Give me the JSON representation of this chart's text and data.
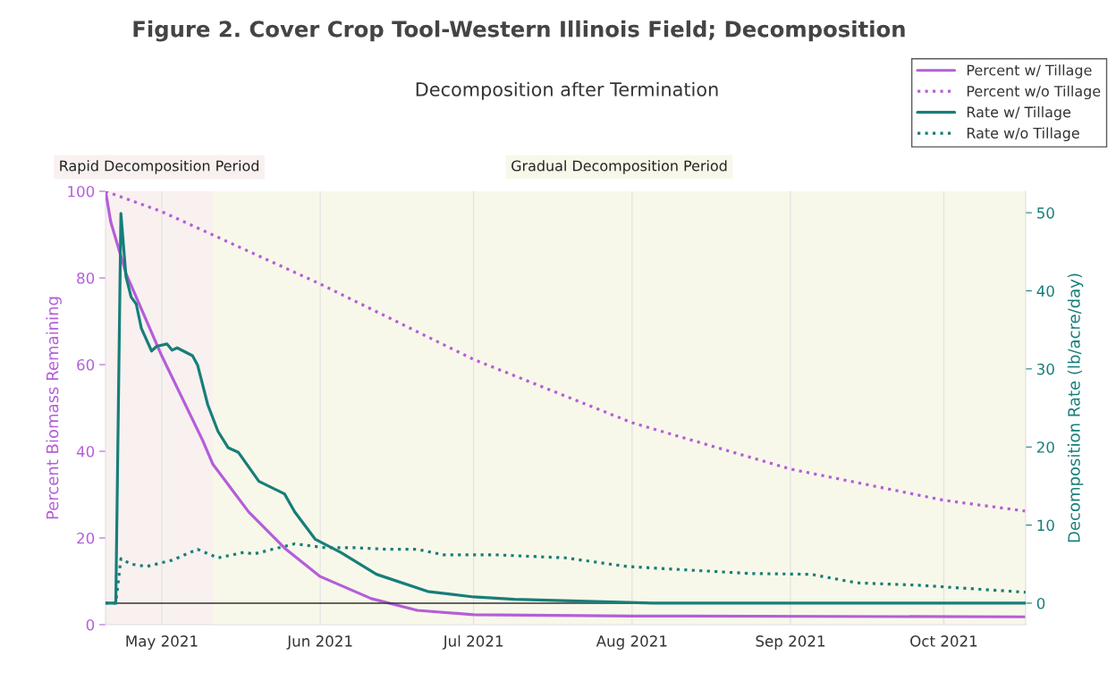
{
  "chart_data": {
    "type": "line",
    "title": "Figure 2. Cover Crop Tool-Western Illinois Field; Decomposition",
    "subtitle": "Decomposition after Termination",
    "ylabel": "Percent Biomass Remaining",
    "y2label": "Decomposition Rate (lb/acre/day)",
    "xlim": [
      "2021-04-20",
      "2021-10-17"
    ],
    "xticks": [
      {
        "value": "2021-05-01",
        "label": "May 2021"
      },
      {
        "value": "2021-06-01",
        "label": "Jun 2021"
      },
      {
        "value": "2021-07-01",
        "label": "Jul 2021"
      },
      {
        "value": "2021-08-01",
        "label": "Aug 2021"
      },
      {
        "value": "2021-09-01",
        "label": "Sep 2021"
      },
      {
        "value": "2021-10-01",
        "label": "Oct 2021"
      }
    ],
    "ylim": [
      0,
      100
    ],
    "yticks": [
      0,
      20,
      40,
      60,
      80,
      100
    ],
    "y2lim": [
      -2.75,
      52.75
    ],
    "y2ticks": [
      0,
      10,
      20,
      30,
      40,
      50
    ],
    "grid": "x",
    "legend": "top right",
    "bands": [
      {
        "axis": "x",
        "from": "2021-04-20",
        "to": "2021-05-11",
        "label": "Rapid Decomposition Period",
        "color": "#f8f1ef"
      },
      {
        "axis": "x",
        "from": "2021-05-11",
        "to": "2021-10-17",
        "label": "Gradual Decomposition Period",
        "color": "#f8f8ea"
      }
    ],
    "ref_lines": [
      {
        "axis": "y2",
        "value": 0,
        "color": "#333333"
      }
    ],
    "series": [
      {
        "name": "Percent w/ Tillage",
        "color": "#b45ed8",
        "line_style": "solid",
        "x": [
          "2021-04-20",
          "2021-04-21",
          "2021-04-24",
          "2021-05-01",
          "2021-05-09",
          "2021-05-11",
          "2021-05-18",
          "2021-05-25",
          "2021-06-01",
          "2021-06-11",
          "2021-06-20",
          "2021-07-01",
          "2021-08-01",
          "2021-10-17"
        ],
        "values": [
          100,
          93,
          81,
          62,
          42.5,
          37,
          26,
          17.7,
          11.1,
          6,
          3.3,
          2.3,
          2.0,
          1.8
        ]
      },
      {
        "name": "Percent w/o Tillage",
        "color": "#b45ed8",
        "line_style": "dotted",
        "x": [
          "2021-04-20",
          "2021-05-01",
          "2021-06-01",
          "2021-07-01",
          "2021-08-01",
          "2021-09-01",
          "2021-10-01",
          "2021-10-17"
        ],
        "values": [
          100,
          95.3,
          78.6,
          61.2,
          46.6,
          35.9,
          28.7,
          26.2
        ]
      },
      {
        "name": "Rate w/ Tillage",
        "color": "#177e7a",
        "line_style": "solid",
        "axis": "y2",
        "x": [
          "2021-04-20",
          "2021-04-22",
          "2021-04-23",
          "2021-04-24",
          "2021-04-25",
          "2021-04-26",
          "2021-04-27",
          "2021-04-29",
          "2021-04-30",
          "2021-05-02",
          "2021-05-03",
          "2021-05-04",
          "2021-05-07",
          "2021-05-08",
          "2021-05-10",
          "2021-05-12",
          "2021-05-14",
          "2021-05-16",
          "2021-05-20",
          "2021-05-25",
          "2021-05-27",
          "2021-05-31",
          "2021-06-05",
          "2021-06-12",
          "2021-06-22",
          "2021-07-01",
          "2021-07-09",
          "2021-08-05",
          "2021-10-17"
        ],
        "values": [
          0,
          0,
          49.9,
          41.8,
          39.2,
          38.3,
          35.2,
          32.3,
          32.9,
          33.2,
          32.4,
          32.7,
          31.7,
          30.5,
          25.4,
          22.0,
          19.9,
          19.3,
          15.6,
          14.0,
          11.7,
          8.2,
          6.5,
          3.7,
          1.5,
          0.8,
          0.5,
          0,
          0
        ]
      },
      {
        "name": "Rate w/o Tillage",
        "color": "#177e7a",
        "line_style": "dotted",
        "axis": "y2",
        "x": [
          "2021-04-20",
          "2021-04-22",
          "2021-04-23",
          "2021-04-25",
          "2021-04-28",
          "2021-05-03",
          "2021-05-08",
          "2021-05-12",
          "2021-05-17",
          "2021-05-19",
          "2021-05-27",
          "2021-06-02",
          "2021-06-08",
          "2021-06-14",
          "2021-06-20",
          "2021-06-25",
          "2021-07-05",
          "2021-07-19",
          "2021-07-31",
          "2021-08-24",
          "2021-09-05",
          "2021-09-14",
          "2021-09-26",
          "2021-10-17"
        ],
        "values": [
          0,
          0,
          5.7,
          5.0,
          4.7,
          5.5,
          6.9,
          5.8,
          6.5,
          6.3,
          7.6,
          7.1,
          7.1,
          6.9,
          6.9,
          6.2,
          6.2,
          5.8,
          4.7,
          3.8,
          3.7,
          2.6,
          2.3,
          1.4
        ]
      }
    ]
  }
}
